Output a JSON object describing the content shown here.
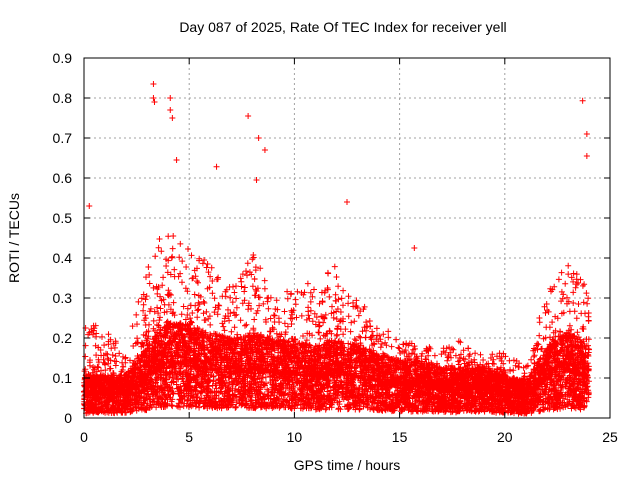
{
  "chart_data": {
    "type": "scatter",
    "title": "Day 087 of 2025, Rate Of TEC Index for receiver yell",
    "xlabel": "GPS time / hours",
    "ylabel": "ROTI / TECUs",
    "xlim": [
      0,
      25
    ],
    "ylim": [
      0,
      0.9
    ],
    "x_ticks": [
      "0",
      "5",
      "10",
      "15",
      "20",
      "25"
    ],
    "y_ticks": [
      "0",
      "0.1",
      "0.2",
      "0.3",
      "0.4",
      "0.5",
      "0.6",
      "0.7",
      "0.8",
      "0.9"
    ],
    "grid": true,
    "marker": "+",
    "color": "#ff0000",
    "sample_points": [
      {
        "x": 3.3,
        "y": 0.835
      },
      {
        "x": 3.3,
        "y": 0.8
      },
      {
        "x": 3.35,
        "y": 0.79
      },
      {
        "x": 4.1,
        "y": 0.8
      },
      {
        "x": 4.1,
        "y": 0.77
      },
      {
        "x": 4.2,
        "y": 0.75
      },
      {
        "x": 7.8,
        "y": 0.755
      },
      {
        "x": 8.3,
        "y": 0.7
      },
      {
        "x": 8.6,
        "y": 0.67
      },
      {
        "x": 4.4,
        "y": 0.645
      },
      {
        "x": 6.3,
        "y": 0.628
      },
      {
        "x": 8.2,
        "y": 0.595
      },
      {
        "x": 12.5,
        "y": 0.54
      },
      {
        "x": 15.7,
        "y": 0.425
      },
      {
        "x": 23.7,
        "y": 0.793
      },
      {
        "x": 23.9,
        "y": 0.71
      },
      {
        "x": 23.9,
        "y": 0.655
      },
      {
        "x": 0.25,
        "y": 0.53
      }
    ],
    "hourly_envelope": {
      "hours": [
        0,
        1,
        2,
        3,
        4,
        5,
        6,
        7,
        8,
        9,
        10,
        11,
        12,
        13,
        14,
        15,
        16,
        17,
        18,
        19,
        20,
        21,
        22,
        23,
        24
      ],
      "typical_max": [
        0.22,
        0.2,
        0.15,
        0.35,
        0.45,
        0.4,
        0.35,
        0.3,
        0.38,
        0.28,
        0.32,
        0.3,
        0.35,
        0.28,
        0.22,
        0.18,
        0.17,
        0.16,
        0.18,
        0.15,
        0.15,
        0.12,
        0.3,
        0.35,
        0.3
      ],
      "typical_median": [
        0.06,
        0.06,
        0.06,
        0.1,
        0.14,
        0.13,
        0.12,
        0.11,
        0.12,
        0.11,
        0.11,
        0.1,
        0.11,
        0.1,
        0.09,
        0.08,
        0.08,
        0.07,
        0.07,
        0.07,
        0.06,
        0.05,
        0.1,
        0.12,
        0.1
      ]
    }
  }
}
